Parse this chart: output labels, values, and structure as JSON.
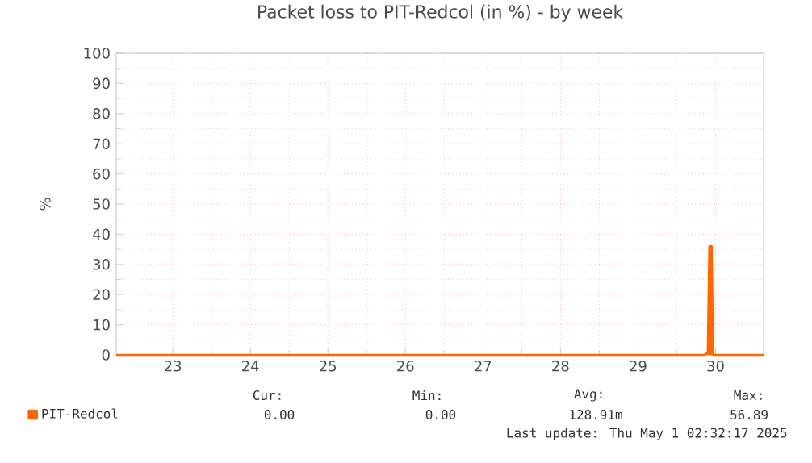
{
  "chart_data": {
    "type": "line",
    "title": "Packet loss to PIT-Redcol (in %) - by week",
    "ylabel": "%",
    "series": [
      {
        "name": "PIT-Redcol",
        "color": "#ff6600",
        "x": [
          22.27,
          29.86,
          29.9,
          29.92,
          29.95,
          29.97,
          30.62
        ],
        "values": [
          0,
          0,
          1,
          36,
          36,
          0,
          0
        ]
      }
    ],
    "xlim": [
      22.27,
      30.62
    ],
    "xticks": [
      23,
      24,
      25,
      26,
      27,
      28,
      29,
      30
    ],
    "ylim": [
      0,
      100
    ],
    "yticks": [
      0,
      10,
      20,
      30,
      40,
      50,
      60,
      70,
      80,
      90,
      100
    ],
    "grid": true,
    "legend": "bottom left",
    "marker": "none",
    "line_style": "solid",
    "annotations": [
      "Cur:",
      "Min:",
      "Avg:",
      "Max:",
      "0.00",
      "0.00",
      "128.91m",
      "56.89",
      "Last update: Thu May  1 02:32:17 2025"
    ]
  }
}
